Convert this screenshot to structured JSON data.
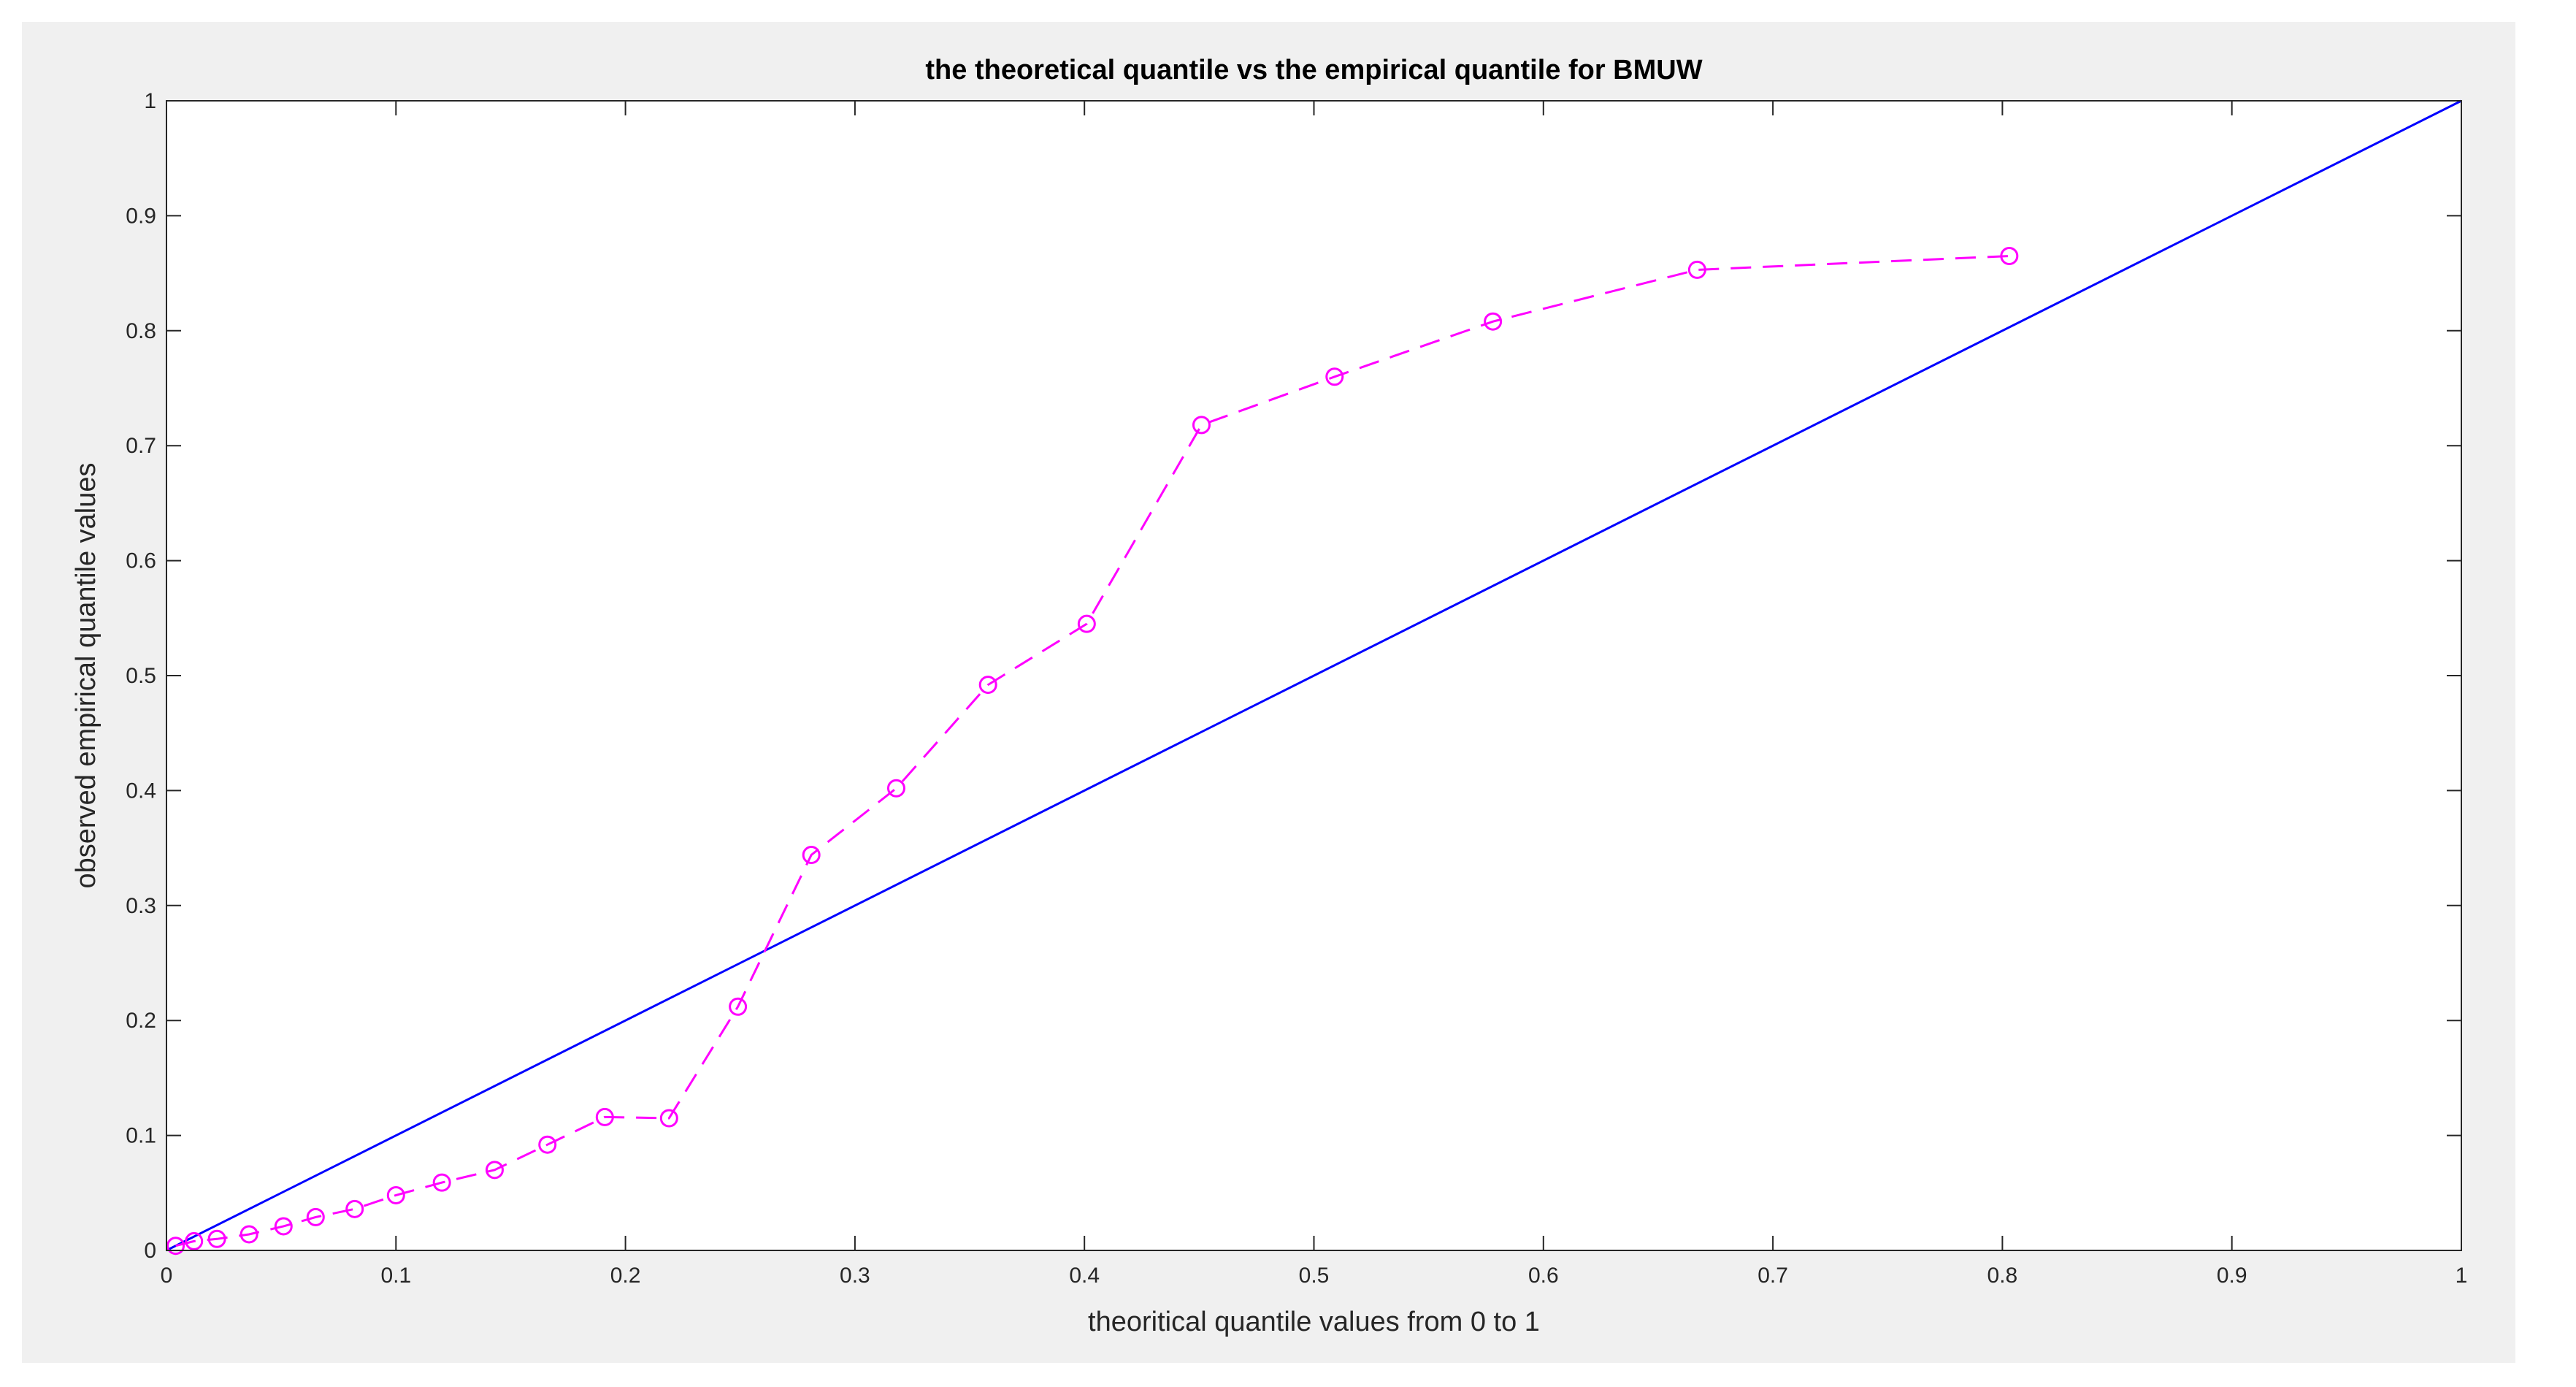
{
  "chart_data": {
    "type": "line",
    "title": "the theoretical quantile vs the empirical quantile for BMUW",
    "xlabel": "theoritical quantile values from 0 to 1",
    "ylabel": "observed empirical quantile  values",
    "xlim": [
      0,
      1
    ],
    "ylim": [
      0,
      1
    ],
    "grid": false,
    "xticks": [
      "0",
      "0.1",
      "0.2",
      "0.3",
      "0.4",
      "0.5",
      "0.6",
      "0.7",
      "0.8",
      "0.9",
      "1"
    ],
    "yticks": [
      "0",
      "0.1",
      "0.2",
      "0.3",
      "0.4",
      "0.5",
      "0.6",
      "0.7",
      "0.8",
      "0.9",
      "1"
    ],
    "series": [
      {
        "style": "solid",
        "color": "#0000ff",
        "marker": "none",
        "x": [
          0,
          1
        ],
        "y": [
          0,
          1
        ]
      },
      {
        "style": "dashed",
        "color": "#ff00ff",
        "marker": "circle",
        "x": [
          0.004,
          0.012,
          0.022,
          0.036,
          0.051,
          0.065,
          0.082,
          0.1,
          0.12,
          0.143,
          0.166,
          0.191,
          0.219,
          0.249,
          0.281,
          0.318,
          0.358,
          0.401,
          0.451,
          0.509,
          0.578,
          0.667,
          0.803
        ],
        "y": [
          0.004,
          0.008,
          0.01,
          0.014,
          0.021,
          0.029,
          0.036,
          0.048,
          0.059,
          0.07,
          0.092,
          0.116,
          0.115,
          0.212,
          0.344,
          0.402,
          0.492,
          0.545,
          0.718,
          0.76,
          0.808,
          0.853,
          0.865
        ]
      }
    ]
  }
}
